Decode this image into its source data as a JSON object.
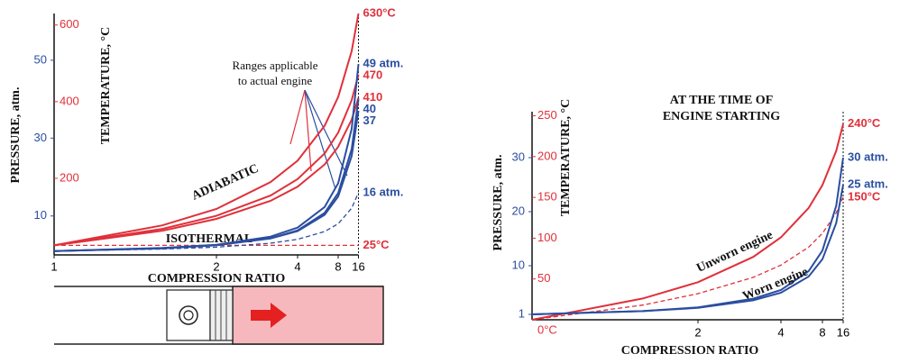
{
  "chart_data": [
    {
      "type": "line",
      "xscale": "stroke",
      "x": [
        1,
        1.5,
        2,
        3,
        4,
        6,
        8,
        12,
        16
      ],
      "xlim": [
        1,
        16
      ],
      "xticks": [
        1,
        2,
        4,
        8,
        16
      ],
      "xlabel": "COMPRESSION RATIO",
      "ylabel": "PRESSURE, atm.",
      "y2label": "TEMPERATURE, °C",
      "ylim": [
        0,
        62
      ],
      "yticks": [
        10,
        30,
        50
      ],
      "y2lim": [
        0,
        630
      ],
      "y2ticks": [
        200,
        400,
        600
      ],
      "ycolor": "#2b4ea0",
      "y2color": "#e0303a",
      "annotation": [
        "Ranges applicable",
        "to actual engine"
      ],
      "series": [
        {
          "name": "ADIABATIC",
          "axis": "y2",
          "color": "#e0303a",
          "values": [
            25,
            77,
            120,
            190,
            246,
            337,
            412,
            532,
            630
          ],
          "value_labels": [
            null,
            null,
            null,
            null,
            null,
            null,
            null,
            null,
            "630°C"
          ]
        },
        {
          "axis": "y2",
          "color": "#e0303a",
          "values": [
            25,
            68,
            102,
            155,
            198,
            265,
            319,
            404,
            470
          ],
          "value_labels": [
            null,
            null,
            null,
            null,
            null,
            null,
            null,
            null,
            "470"
          ]
        },
        {
          "axis": "y2",
          "color": "#e0303a",
          "values": [
            25,
            63,
            94,
            141,
            178,
            236,
            282,
            353,
            410
          ],
          "value_labels": [
            null,
            null,
            null,
            null,
            null,
            null,
            null,
            null,
            "410"
          ]
        },
        {
          "name": "ISOTHERMAL",
          "axis": "y2",
          "color": "#e0303a",
          "dash": true,
          "values": [
            25,
            25,
            25,
            25,
            25,
            25,
            25,
            25,
            25
          ],
          "value_labels": [
            null,
            null,
            null,
            null,
            null,
            null,
            null,
            null,
            "25°C"
          ]
        },
        {
          "color": "#2b4ea0",
          "values": [
            1,
            1.8,
            2.6,
            4.7,
            7.0,
            12.3,
            18.4,
            32.4,
            49
          ],
          "value_labels": [
            null,
            null,
            null,
            null,
            null,
            null,
            null,
            null,
            "49 atm."
          ]
        },
        {
          "color": "#2b4ea0",
          "values": [
            1,
            1.7,
            2.5,
            4.3,
            6.3,
            10.8,
            15.9,
            27.2,
            40
          ],
          "value_labels": [
            null,
            null,
            null,
            null,
            null,
            null,
            null,
            null,
            "40"
          ]
        },
        {
          "color": "#2b4ea0",
          "values": [
            1,
            1.7,
            2.5,
            4.2,
            6.1,
            10.3,
            15.0,
            25.4,
            37
          ],
          "value_labels": [
            null,
            null,
            null,
            null,
            null,
            null,
            null,
            null,
            "37"
          ]
        },
        {
          "color": "#2b4ea0",
          "dash": true,
          "values": [
            1,
            1.5,
            2,
            3,
            4,
            6,
            8,
            12,
            16
          ],
          "value_labels": [
            null,
            null,
            null,
            null,
            null,
            null,
            null,
            null,
            "16 atm."
          ]
        }
      ]
    },
    {
      "type": "line",
      "xscale": "stroke",
      "x": [
        1,
        1.5,
        2,
        3,
        4,
        6,
        8,
        12,
        16
      ],
      "xlim": [
        1,
        16
      ],
      "xticks": [
        2,
        4,
        8,
        16
      ],
      "title": [
        "AT THE TIME OF",
        "ENGINE STARTING"
      ],
      "xlabel": "COMPRESSION RATIO",
      "ylabel": "PRESSURE, atm.",
      "y2label": "TEMPERATURE, °C",
      "ylim": [
        0,
        38.5
      ],
      "yticks": [
        1,
        10,
        20,
        30
      ],
      "y2lim": [
        0,
        255
      ],
      "y2ticks": [
        {
          "value": 0,
          "label": "0°C"
        },
        50,
        100,
        150,
        200,
        250
      ],
      "ycolor": "#2b4ea0",
      "y2color": "#e0303a",
      "series": [
        {
          "name": "Unworn engine",
          "axis": "y2",
          "color": "#e0303a",
          "values": [
            0,
            26,
            46,
            77,
            101,
            137,
            165,
            207,
            240
          ],
          "value_labels": [
            null,
            null,
            null,
            null,
            null,
            null,
            null,
            null,
            "240°C"
          ]
        },
        {
          "axis": "y2",
          "color": "#e0303a",
          "dash": true,
          "values": [
            0,
            18,
            32,
            52,
            67,
            89,
            106,
            131,
            150
          ],
          "value_labels": [
            null,
            null,
            null,
            null,
            null,
            null,
            null,
            null,
            "150°C"
          ]
        },
        {
          "color": "#2b4ea0",
          "values": [
            1,
            1.6,
            2.3,
            3.9,
            5.5,
            9.0,
            12.8,
            21.1,
            30
          ],
          "value_labels": [
            null,
            null,
            null,
            null,
            null,
            null,
            null,
            null,
            "30 atm."
          ]
        },
        {
          "name": "Worn engine",
          "color": "#2b4ea0",
          "values": [
            1,
            1.6,
            2.2,
            3.6,
            5.0,
            8.0,
            11.2,
            17.9,
            25
          ],
          "value_labels": [
            null,
            null,
            null,
            null,
            null,
            null,
            null,
            null,
            "25 atm."
          ]
        }
      ]
    }
  ]
}
